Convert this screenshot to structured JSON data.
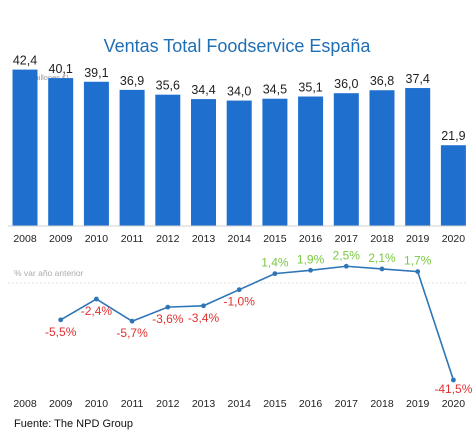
{
  "chart_data": [
    {
      "type": "bar",
      "title": "Ventas Total Foodservice España",
      "unit_label": "('000 millones €)",
      "categories": [
        "2008",
        "2009",
        "2010",
        "2011",
        "2012",
        "2013",
        "2014",
        "2015",
        "2016",
        "2017",
        "2018",
        "2019",
        "2020"
      ],
      "values": [
        42.4,
        40.1,
        39.1,
        36.9,
        35.6,
        34.4,
        34.0,
        34.5,
        35.1,
        36.0,
        36.8,
        37.4,
        21.9
      ],
      "value_labels": [
        "42,4",
        "40,1",
        "39,1",
        "36,9",
        "35,6",
        "34,4",
        "34,0",
        "34,5",
        "35,1",
        "36,0",
        "36,8",
        "37,4",
        "21,9"
      ],
      "ylim": [
        0,
        45
      ],
      "bar_color": "#1f6fcf",
      "grid": false
    },
    {
      "type": "line",
      "ylabel": "% var año anterior",
      "categories": [
        "2008",
        "2009",
        "2010",
        "2011",
        "2012",
        "2013",
        "2014",
        "2015",
        "2016",
        "2017",
        "2018",
        "2019",
        "2020"
      ],
      "x": [
        "2009",
        "2010",
        "2011",
        "2012",
        "2013",
        "2014",
        "2015",
        "2016",
        "2017",
        "2018",
        "2019",
        "2020"
      ],
      "values": [
        -5.5,
        -2.4,
        -5.7,
        -3.6,
        -3.4,
        -1.0,
        1.4,
        1.9,
        2.5,
        2.1,
        1.7,
        -41.5
      ],
      "value_labels": [
        "-5,5%",
        "-2,4%",
        "-5,7%",
        "-3,6%",
        "-3,4%",
        "-1,0%",
        "1,4%",
        "1,9%",
        "2,5%",
        "2,1%",
        "1,7%",
        "-41,5%"
      ],
      "line_color": "#2e75b6",
      "negative_color": "#e03030",
      "positive_color": "#7ac943",
      "grid": false
    }
  ],
  "source": "Fuente: The NPD Group"
}
